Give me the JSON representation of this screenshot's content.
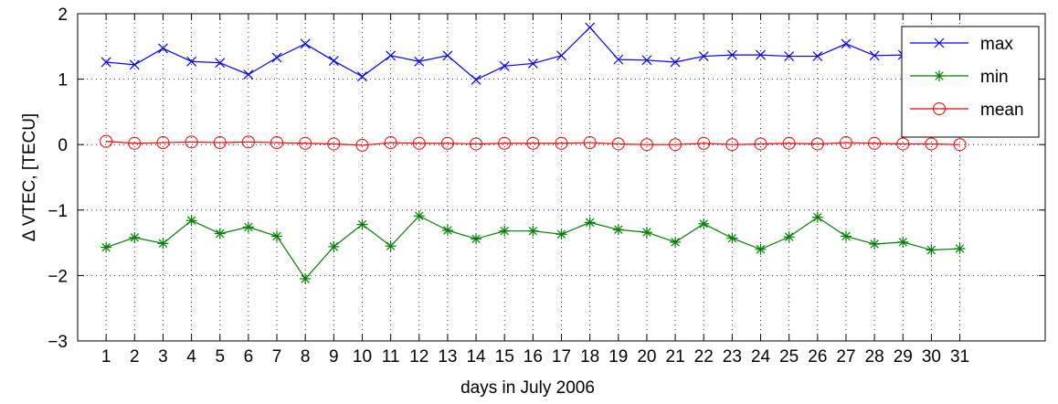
{
  "chart_data": {
    "type": "line",
    "xlabel": "days in July 2006",
    "ylabel": "Δ VTEC, [TECU]",
    "xlim": [
      0,
      34
    ],
    "ylim": [
      -3,
      2
    ],
    "x": [
      1,
      2,
      3,
      4,
      5,
      6,
      7,
      8,
      9,
      10,
      11,
      12,
      13,
      14,
      15,
      16,
      17,
      18,
      19,
      20,
      21,
      22,
      23,
      24,
      25,
      26,
      27,
      28,
      29,
      30,
      31
    ],
    "x_tick_labels": [
      "1",
      "2",
      "3",
      "4",
      "5",
      "6",
      "7",
      "8",
      "9",
      "10",
      "11",
      "12",
      "13",
      "14",
      "15",
      "16",
      "17",
      "18",
      "19",
      "20",
      "21",
      "22",
      "23",
      "24",
      "25",
      "26",
      "27",
      "28",
      "29",
      "30",
      "31"
    ],
    "y_ticks": [
      2,
      1,
      0,
      -1,
      -2,
      -3
    ],
    "y_tick_labels": [
      "2",
      "1",
      "0",
      "−1",
      "−2",
      "−3"
    ],
    "grid": true,
    "legend_position": "top-right",
    "series": [
      {
        "name": "max",
        "color": "#0000ff",
        "marker": "x",
        "values": [
          1.26,
          1.22,
          1.47,
          1.27,
          1.25,
          1.07,
          1.33,
          1.54,
          1.28,
          1.04,
          1.36,
          1.27,
          1.36,
          0.99,
          1.2,
          1.24,
          1.36,
          1.79,
          1.3,
          1.29,
          1.26,
          1.35,
          1.37,
          1.37,
          1.35,
          1.35,
          1.54,
          1.36,
          1.37,
          1.29,
          1.25
        ]
      },
      {
        "name": "min",
        "color": "#008000",
        "marker": "*",
        "values": [
          -1.57,
          -1.42,
          -1.51,
          -1.16,
          -1.36,
          -1.26,
          -1.4,
          -2.05,
          -1.56,
          -1.22,
          -1.55,
          -1.09,
          -1.31,
          -1.44,
          -1.32,
          -1.32,
          -1.37,
          -1.19,
          -1.3,
          -1.34,
          -1.49,
          -1.21,
          -1.43,
          -1.6,
          -1.41,
          -1.11,
          -1.4,
          -1.52,
          -1.49,
          -1.61,
          -1.59
        ]
      },
      {
        "name": "mean",
        "color": "#ff0000",
        "marker": "o",
        "values": [
          0.05,
          0.02,
          0.03,
          0.04,
          0.03,
          0.04,
          0.03,
          0.02,
          0.01,
          -0.01,
          0.03,
          0.02,
          0.02,
          0.01,
          0.02,
          0.02,
          0.02,
          0.03,
          0.01,
          0.0,
          0.0,
          0.02,
          0.0,
          0.01,
          0.02,
          0.01,
          0.03,
          0.02,
          0.01,
          0.01,
          0.0
        ]
      }
    ]
  }
}
